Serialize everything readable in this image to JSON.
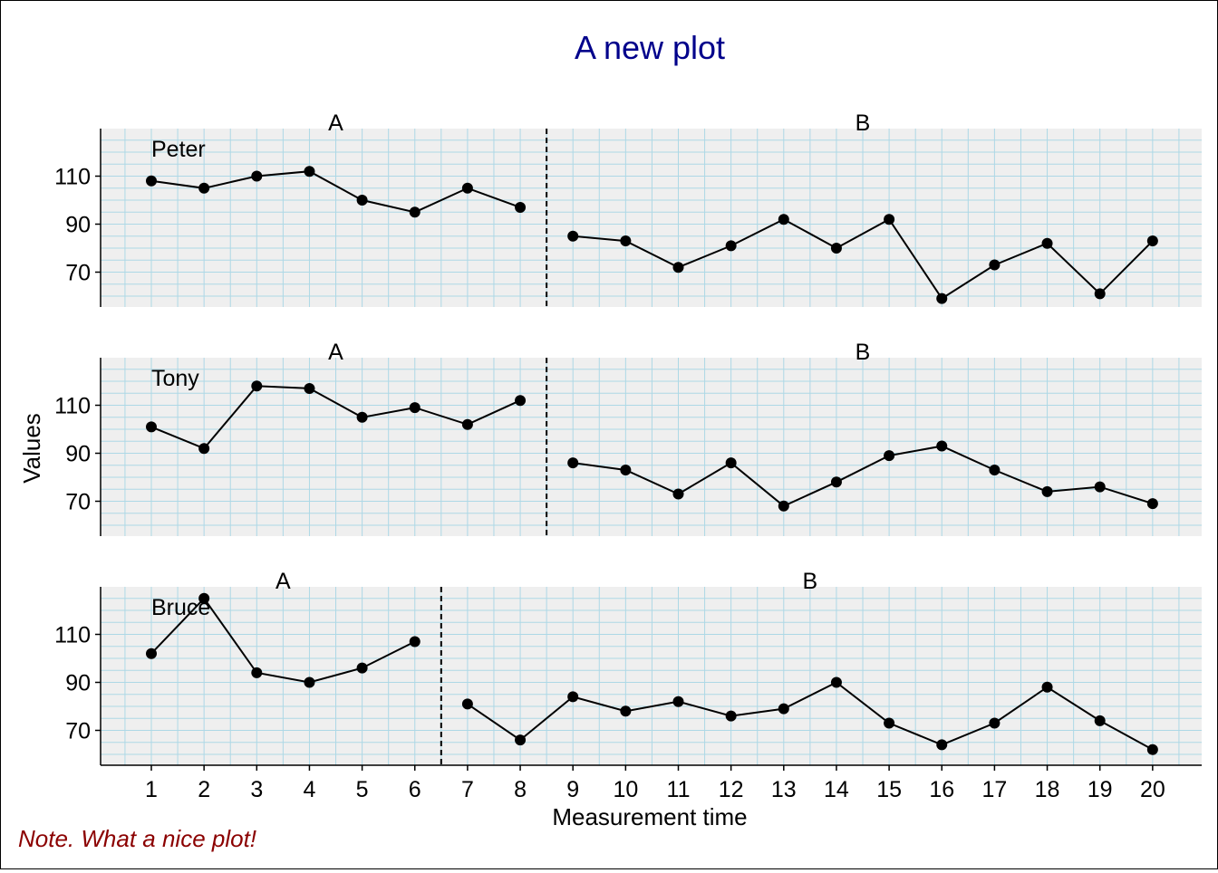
{
  "chart_data": {
    "type": "line",
    "title": "A new plot",
    "xlabel": "Measurement time",
    "ylabel": "Values",
    "note": "Note. What a nice plot!",
    "x_ticks": [
      1,
      2,
      3,
      4,
      5,
      6,
      7,
      8,
      9,
      10,
      11,
      12,
      13,
      14,
      15,
      16,
      17,
      18,
      19,
      20
    ],
    "y_ticks": [
      70,
      90,
      110
    ],
    "xlim": [
      0,
      21
    ],
    "ylim": [
      54,
      128
    ],
    "grid": true,
    "colors": {
      "title": "#00008B",
      "note": "#8B0000",
      "panel_background": "#EFEFEF",
      "grid": "#ADD8E6",
      "line": "#000000"
    },
    "phase_labels": [
      "A",
      "B"
    ],
    "panels": [
      {
        "case": "Peter",
        "phase_change_after": 8,
        "values": [
          108,
          105,
          110,
          112,
          100,
          95,
          105,
          97,
          85,
          83,
          72,
          81,
          92,
          80,
          92,
          59,
          73,
          82,
          61,
          83
        ]
      },
      {
        "case": "Tony",
        "phase_change_after": 8,
        "values": [
          101,
          92,
          118,
          117,
          105,
          109,
          102,
          112,
          86,
          83,
          73,
          86,
          68,
          78,
          89,
          93,
          83,
          74,
          76,
          69
        ]
      },
      {
        "case": "Bruce",
        "phase_change_after": 6,
        "values": [
          102,
          125,
          94,
          90,
          96,
          107,
          81,
          66,
          84,
          78,
          82,
          76,
          79,
          90,
          73,
          64,
          73,
          88,
          74,
          62
        ]
      }
    ]
  }
}
